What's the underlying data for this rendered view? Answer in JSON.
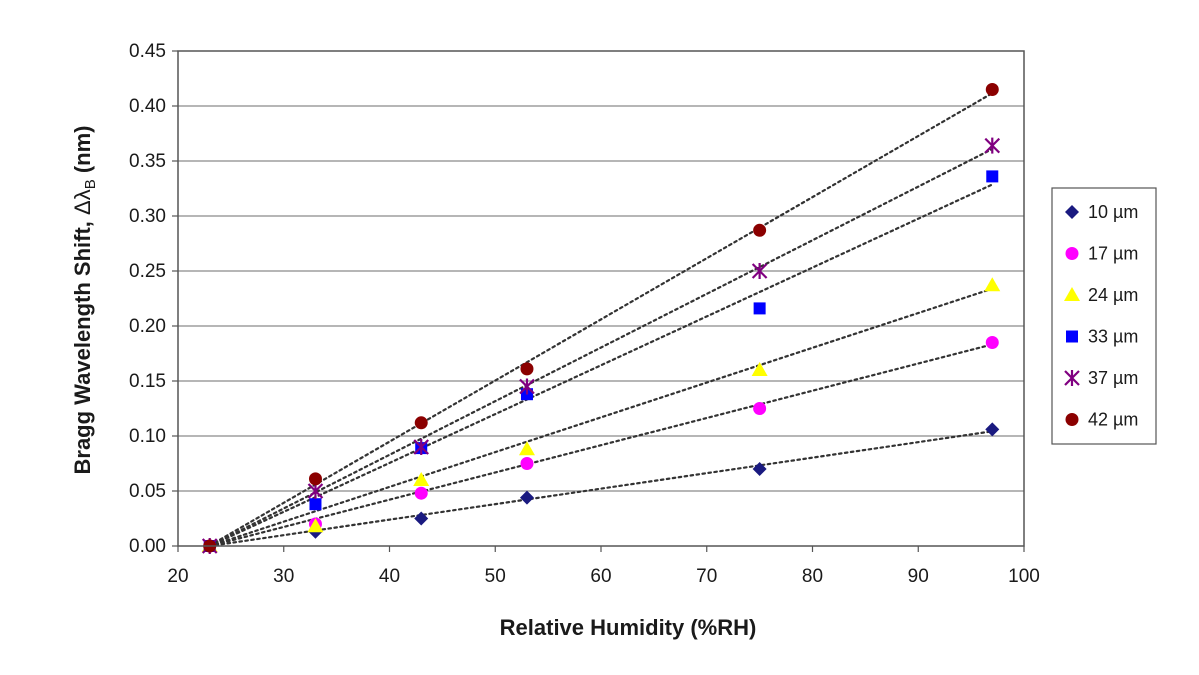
{
  "chart_data": {
    "type": "scatter",
    "title": "",
    "xlabel": "Relative Humidity (%RH)",
    "ylabel_main": "Bragg Wavelength Shift, ",
    "ylabel_delta": "Δ",
    "ylabel_lambda": "λ",
    "ylabel_sub": "B",
    "ylabel_unit": " (nm)",
    "xlim": [
      20,
      100
    ],
    "ylim": [
      0,
      0.45
    ],
    "x_ticks": [
      20,
      30,
      40,
      50,
      60,
      70,
      80,
      90,
      100
    ],
    "y_ticks": [
      "0.00",
      "0.05",
      "0.10",
      "0.15",
      "0.20",
      "0.25",
      "0.30",
      "0.35",
      "0.40",
      "0.45"
    ],
    "grid": true,
    "legend_position": "right",
    "trendlines": "linear, dotted",
    "series": [
      {
        "name": "10 µm",
        "marker": "diamond",
        "color": "#1a1a80",
        "x": [
          23,
          33,
          43,
          53,
          75,
          97
        ],
        "y": [
          0.0,
          0.013,
          0.025,
          0.044,
          0.07,
          0.106
        ]
      },
      {
        "name": "17 µm",
        "marker": "circle",
        "color": "#ff00ff",
        "x": [
          23,
          33,
          43,
          53,
          75,
          97
        ],
        "y": [
          0.0,
          0.02,
          0.048,
          0.075,
          0.125,
          0.185
        ]
      },
      {
        "name": "24 µm",
        "marker": "triangle",
        "color": "#ffff00",
        "x": [
          23,
          33,
          43,
          53,
          75,
          97
        ],
        "y": [
          0.0,
          0.018,
          0.06,
          0.088,
          0.16,
          0.237
        ]
      },
      {
        "name": "33 µm",
        "marker": "square",
        "color": "#0000ff",
        "x": [
          23,
          33,
          43,
          53,
          75,
          97
        ],
        "y": [
          0.0,
          0.038,
          0.089,
          0.138,
          0.216,
          0.336
        ]
      },
      {
        "name": "37 µm",
        "marker": "star",
        "color": "#800080",
        "x": [
          23,
          33,
          43,
          53,
          75,
          97
        ],
        "y": [
          0.0,
          0.05,
          0.09,
          0.145,
          0.25,
          0.364
        ]
      },
      {
        "name": "42 µm",
        "marker": "circle",
        "color": "#8b0000",
        "x": [
          23,
          33,
          43,
          53,
          75,
          97
        ],
        "y": [
          0.0,
          0.061,
          0.112,
          0.161,
          0.287,
          0.415
        ]
      }
    ]
  }
}
